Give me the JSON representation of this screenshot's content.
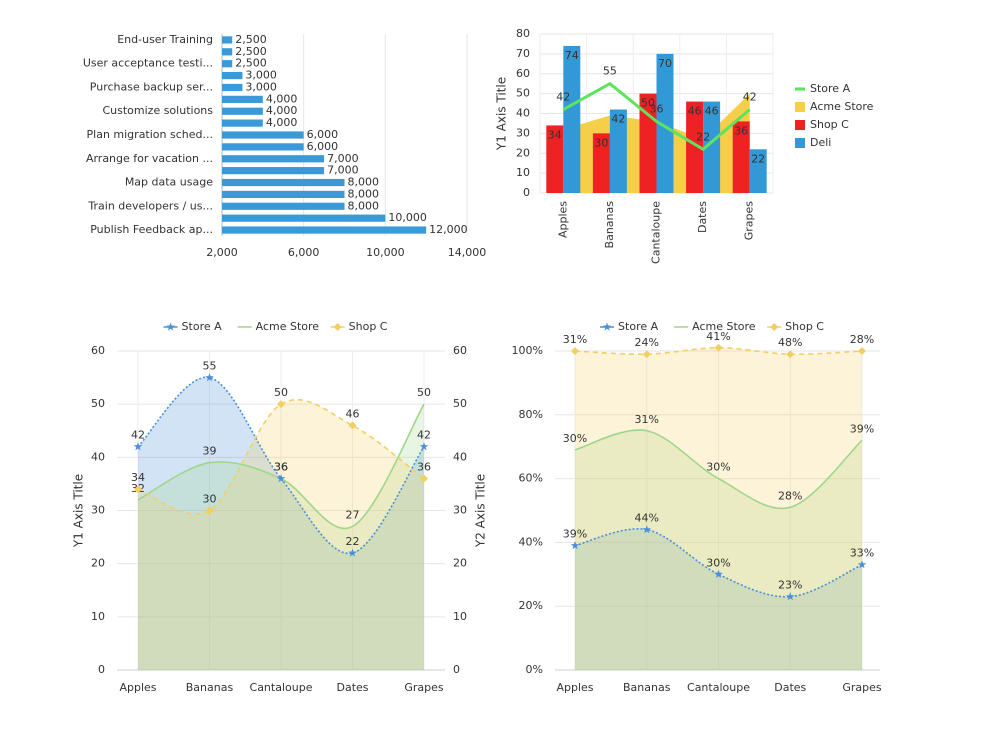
{
  "chart_data": [
    {
      "type": "bar",
      "orientation": "horizontal",
      "categories": [
        "End-user Training",
        null,
        "User acceptance testi...",
        null,
        "Purchase backup ser...",
        null,
        "Customize solutions",
        null,
        "Plan migration sched...",
        null,
        "Arrange for vacation ...",
        null,
        "Map data usage",
        null,
        "Train developers / us...",
        null,
        "Publish Feedback ap..."
      ],
      "values": [
        2500,
        2500,
        2500,
        3000,
        3000,
        4000,
        4000,
        4000,
        6000,
        6000,
        7000,
        7000,
        8000,
        8000,
        8000,
        10000,
        12000
      ],
      "value_labels": [
        "2,500",
        "2,500",
        "2,500",
        "3,000",
        "3,000",
        "4,000",
        "4,000",
        "4,000",
        "6,000",
        "6,000",
        "7,000",
        "7,000",
        "8,000",
        "8,000",
        "8,000",
        "10,000",
        "12,000"
      ],
      "color": "#3a9ad9",
      "xlim": [
        2000,
        14000
      ],
      "xticks": [
        {
          "value": 2000,
          "label": "2,000"
        },
        {
          "value": 6000,
          "label": "6,000"
        },
        {
          "value": 10000,
          "label": "10,000"
        },
        {
          "value": 14000,
          "label": "14,000"
        }
      ],
      "grid": true
    },
    {
      "type": "combo",
      "categories": [
        "Apples",
        "Bananas",
        "Cantaloupe",
        "Dates",
        "Grapes"
      ],
      "series": [
        {
          "name": "Store A",
          "color": "#5de35d",
          "kind": "line",
          "values": [
            42,
            55,
            36,
            22,
            42
          ]
        },
        {
          "name": "Acme Store",
          "color": "#f5ce4a",
          "kind": "area",
          "values": [
            32,
            39,
            36,
            27,
            50
          ],
          "data_labels": false
        },
        {
          "name": "Shop C",
          "color": "#ee2222",
          "kind": "bar",
          "values": [
            34,
            30,
            50,
            46,
            36
          ]
        },
        {
          "name": "Deli",
          "color": "#3399d6",
          "kind": "bar",
          "values": [
            74,
            42,
            70,
            46,
            22
          ]
        }
      ],
      "ylim": [
        0,
        80
      ],
      "yticks": [
        0,
        10,
        20,
        30,
        40,
        50,
        60,
        70,
        80
      ],
      "y_title": "Y1 Axis Title",
      "legend": "right",
      "grid": true
    },
    {
      "type": "area",
      "curve": "spline",
      "categories": [
        "Apples",
        "Bananas",
        "Cantaloupe",
        "Dates",
        "Grapes"
      ],
      "series": [
        {
          "name": "Store A",
          "color": "#4a90d9",
          "dash": "dotted",
          "marker": "star",
          "values": [
            42,
            55,
            36,
            22,
            42
          ]
        },
        {
          "name": "Acme Store",
          "color": "#9fd68a",
          "dash": "solid",
          "marker": "none",
          "values": [
            32,
            39,
            36,
            27,
            50
          ]
        },
        {
          "name": "Shop C",
          "color": "#f2cf63",
          "dash": "dashed",
          "marker": "diamond",
          "values": [
            34,
            30,
            50,
            46,
            36
          ]
        }
      ],
      "ylim": [
        0,
        60
      ],
      "yticks": [
        0,
        10,
        20,
        30,
        40,
        50,
        60
      ],
      "y2lim": [
        0,
        60
      ],
      "y2ticks": [
        0,
        10,
        20,
        30,
        40,
        50,
        60
      ],
      "y_title": "Y1 Axis Title",
      "y2_title": "Y2 Axis Title",
      "legend": "top",
      "grid": true
    },
    {
      "type": "area",
      "curve": "spline",
      "stacking": "percent",
      "categories": [
        "Apples",
        "Bananas",
        "Cantaloupe",
        "Dates",
        "Grapes"
      ],
      "series": [
        {
          "name": "Store A",
          "color": "#4a90d9",
          "dash": "dotted",
          "marker": "star",
          "values": [
            39,
            44,
            30,
            23,
            33
          ],
          "value_labels": [
            "39%",
            "44%",
            "30%",
            "23%",
            "33%"
          ]
        },
        {
          "name": "Acme Store",
          "color": "#9fd68a",
          "dash": "solid",
          "marker": "none",
          "values": [
            30,
            31,
            30,
            28,
            39
          ],
          "value_labels": [
            "30%",
            "31%",
            "30%",
            "28%",
            "39%"
          ]
        },
        {
          "name": "Shop C",
          "color": "#f2cf63",
          "dash": "dashed",
          "marker": "diamond",
          "values": [
            31,
            24,
            41,
            48,
            28
          ],
          "value_labels": [
            "31%",
            "24%",
            "41%",
            "48%",
            "28%"
          ]
        }
      ],
      "ylim": [
        0,
        100
      ],
      "yticks": [
        {
          "value": 0,
          "label": "0%"
        },
        {
          "value": 20,
          "label": "20%"
        },
        {
          "value": 40,
          "label": "40%"
        },
        {
          "value": 60,
          "label": "60%"
        },
        {
          "value": 80,
          "label": "80%"
        },
        {
          "value": 100,
          "label": "100%"
        }
      ],
      "legend": "top",
      "grid": true
    }
  ]
}
